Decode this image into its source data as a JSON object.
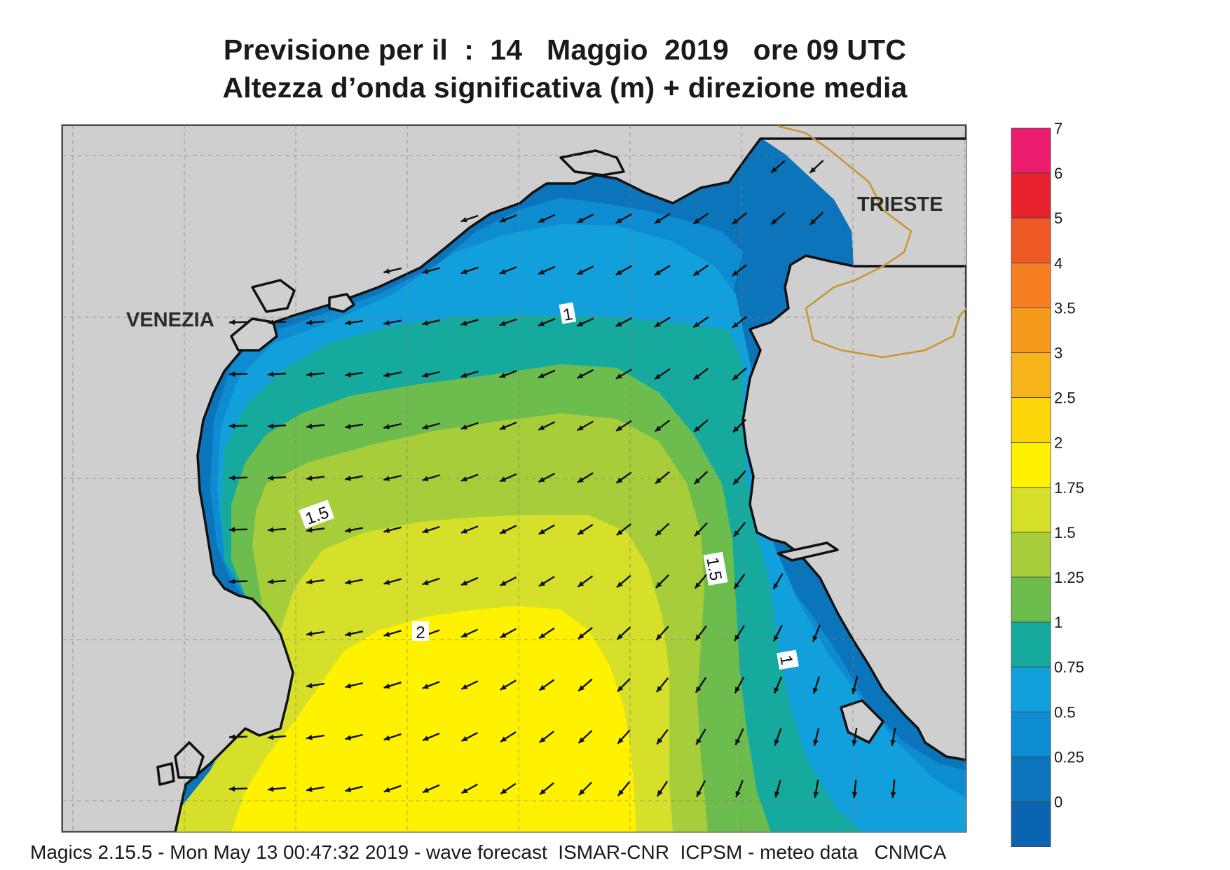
{
  "title": {
    "line1": "Previsione per il  :  14   Maggio  2019   ore 09 UTC",
    "line2": "Altezza d’onda significativa (m) + direzione media"
  },
  "footer": "Magics 2.15.5 - Mon May 13 00:47:32 2019 - wave forecast  ISMAR-CNR  ICPSM - meteo data   CNMCA",
  "map": {
    "cities": [
      "VENEZIA",
      "TRIESTE"
    ],
    "contour_labels": [
      "1",
      "1.5",
      "1.5",
      "2",
      "1"
    ],
    "land_color": "#cfcfcf",
    "coast_color": "#111111",
    "border_color": "#c8962e"
  },
  "legend": {
    "title": "",
    "levels": [
      "7",
      "6",
      "5",
      "4",
      "3.5",
      "3",
      "2.5",
      "2",
      "1.75",
      "1.5",
      "1.25",
      "1",
      "0.75",
      "0.5",
      "0.25",
      "0"
    ],
    "colors": [
      "#ec1c6e",
      "#e8232f",
      "#ee5a26",
      "#f57f22",
      "#f59a1b",
      "#f7b51b",
      "#fbd70a",
      "#fff200",
      "#d6e02a",
      "#a7cd3a",
      "#6cbd4e",
      "#16aa9f",
      "#12a0dc",
      "#0e8cd2",
      "#0b74bb",
      "#0b64b0"
    ]
  }
}
